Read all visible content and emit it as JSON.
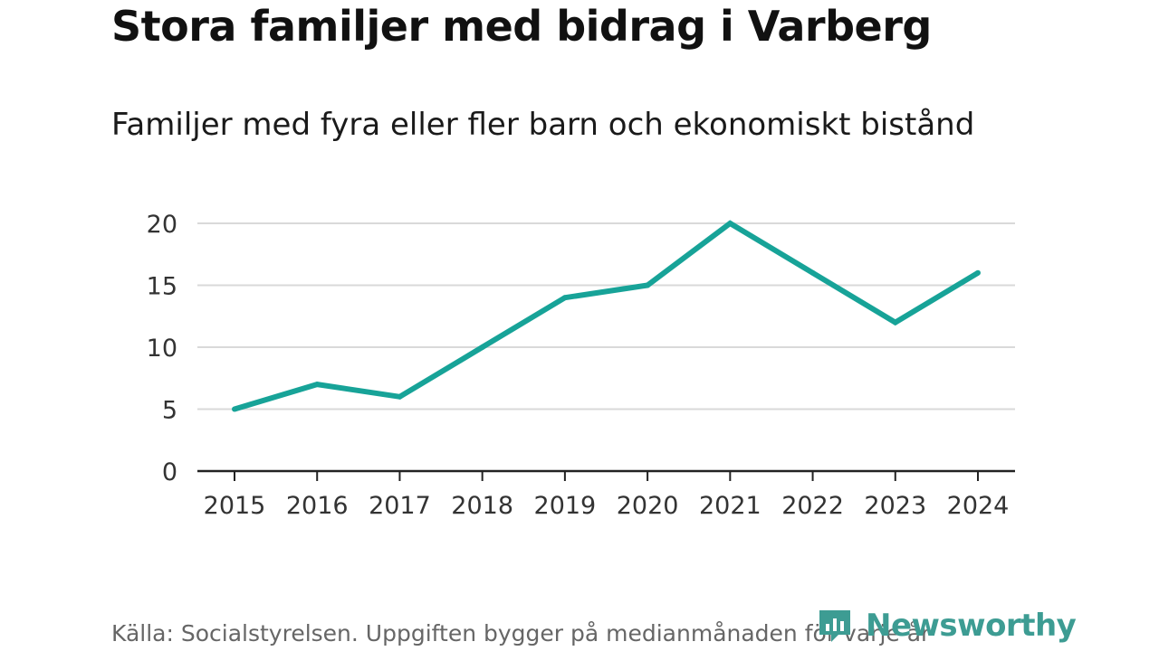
{
  "header": {
    "title": "Stora familjer med bidrag i Varberg",
    "subtitle": "Familjer med fyra eller fler barn och ekonomiskt bistånd"
  },
  "footer": {
    "source": "Källa: Socialstyrelsen. Uppgiften bygger på medianmånaden för varje år",
    "brand": "Newsworthy",
    "brand_icon": "newsworthy-logo-icon"
  },
  "colors": {
    "line": "#17a398",
    "grid": "#d9d9d9",
    "axis": "#222222",
    "brand": "#3d9c93"
  },
  "chart_data": {
    "type": "line",
    "title": "Stora familjer med bidrag i Varberg",
    "subtitle": "Familjer med fyra eller fler barn och ekonomiskt bistånd",
    "xlabel": "",
    "ylabel": "",
    "categories": [
      "2015",
      "2016",
      "2017",
      "2018",
      "2019",
      "2020",
      "2021",
      "2022",
      "2023",
      "2024"
    ],
    "series": [
      {
        "name": "Familjer med fyra eller fler barn och ekonomiskt bistånd",
        "values": [
          5,
          7,
          6,
          10,
          14,
          15,
          20,
          16,
          12,
          16
        ]
      }
    ],
    "ylim": [
      0,
      20
    ],
    "yticks": [
      0,
      5,
      10,
      15,
      20
    ],
    "grid": true,
    "legend": "none"
  }
}
